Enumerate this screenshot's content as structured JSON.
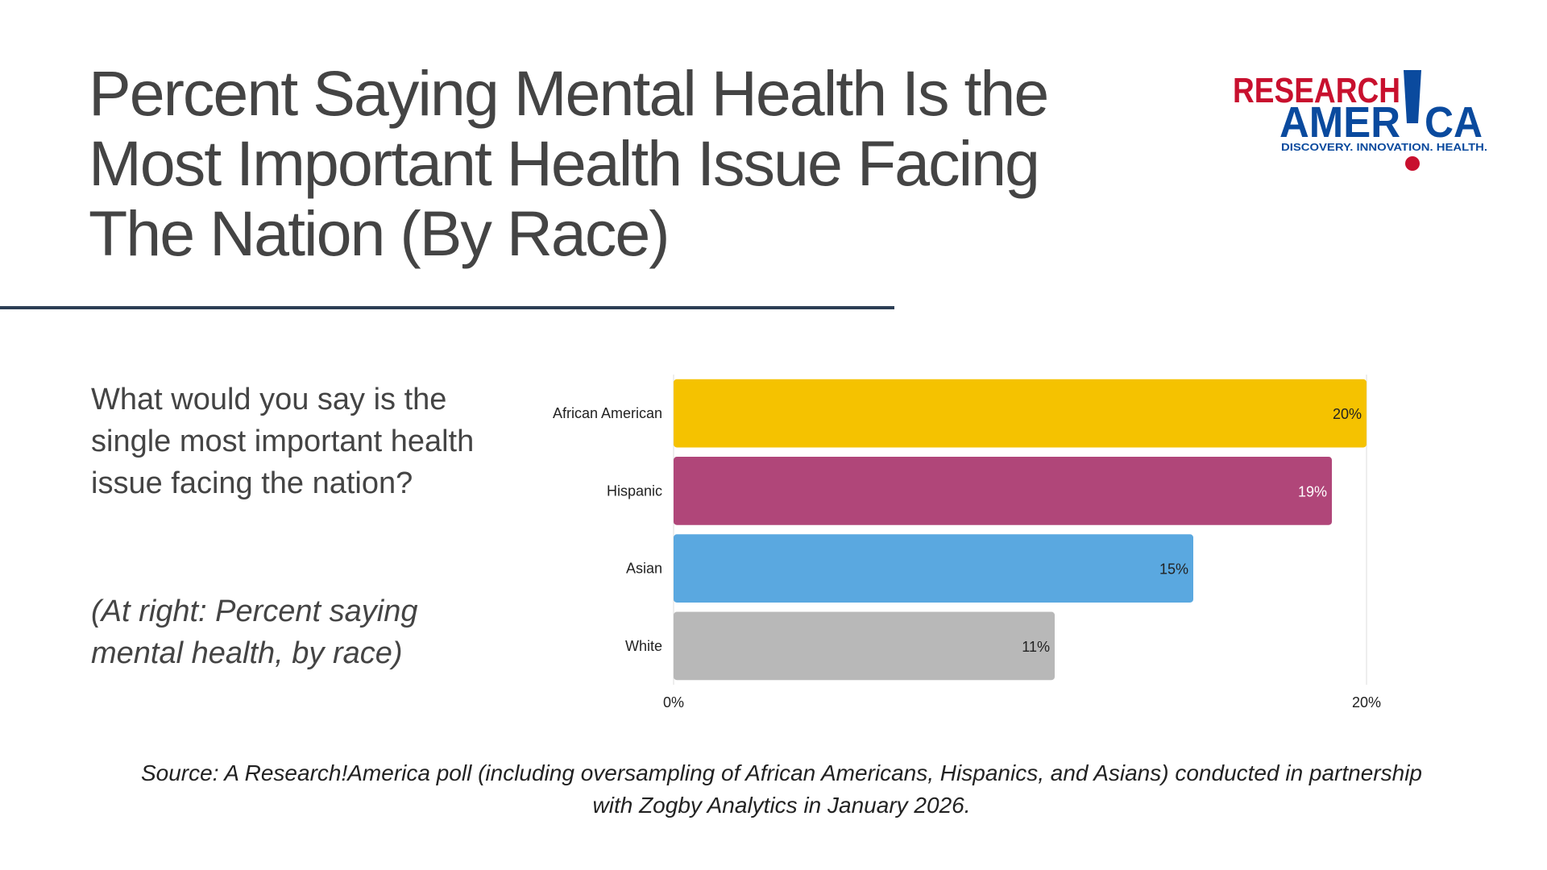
{
  "title": "Percent Saying Mental Health Is the Most Important Health Issue Facing The Nation (By Race)",
  "logo": {
    "line1": "RESEARCH",
    "line2_left": "AMER",
    "line2_right": "CA",
    "tagline": "DISCOVERY. INNOVATION. HEALTH.",
    "colors": {
      "red": "#c8102e",
      "blue": "#0a4a9e"
    }
  },
  "question": "What would you say is the single most important health issue facing the nation?",
  "note": "(At right: Percent saying mental health, by race)",
  "source": "Source: A Research!America poll (including oversampling of African Americans, Hispanics, and Asians) conducted in partnership with Zogby Analytics in January 2026.",
  "chart_data": {
    "type": "bar",
    "orientation": "horizontal",
    "categories": [
      "African American",
      "Hispanic",
      "Asian",
      "White"
    ],
    "values": [
      20,
      19,
      15,
      11
    ],
    "value_labels": [
      "20%",
      "19%",
      "15%",
      "11%"
    ],
    "colors": [
      "#f5c200",
      "#b04679",
      "#5aa8e0",
      "#b8b8b8"
    ],
    "label_colors": [
      "#222222",
      "#ffffff",
      "#222222",
      "#222222"
    ],
    "xlim": [
      0,
      20
    ],
    "x_ticks": [
      0,
      20
    ],
    "x_tick_labels": [
      "0%",
      "20%"
    ],
    "gridline_color": "#dddddd",
    "title": "",
    "xlabel": "",
    "ylabel": ""
  }
}
